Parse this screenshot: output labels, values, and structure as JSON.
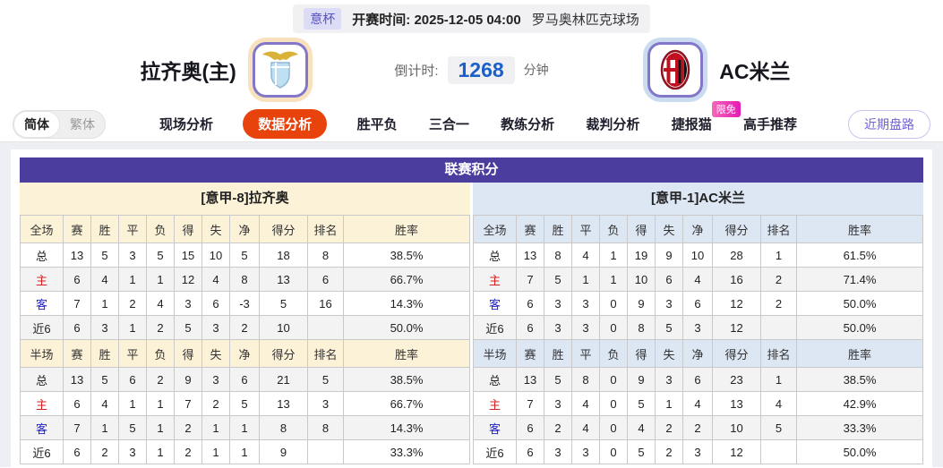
{
  "colors": {
    "title_bar_purple": "#4b3d9e",
    "active_tab_orange": "#e9430d",
    "home_header_cream": "#fcf2d8",
    "away_header_blue": "#dde6f3",
    "countdown_blue": "#1b5fc8",
    "badge_pink": "#e51ab5",
    "league_badge_purple": "#5553c6",
    "home_row_red": "#d42020",
    "away_row_blue": "#2222cc"
  },
  "match_header": {
    "league_badge": "意杯",
    "kickoff_label": "开赛时间:",
    "kickoff_time": "2025-12-05 04:00",
    "venue": "罗马奥林匹克球场",
    "home_team": "拉齐奥(主)",
    "away_team": "AC米兰",
    "countdown_label": "倒计时:",
    "countdown_value": "1268",
    "countdown_unit": "分钟"
  },
  "nav": {
    "lang_simplified": "简体",
    "lang_traditional": "繁体",
    "tabs": [
      {
        "label": "现场分析",
        "active": false
      },
      {
        "label": "数据分析",
        "active": true
      },
      {
        "label": "胜平负",
        "active": false
      },
      {
        "label": "三合一",
        "active": false
      },
      {
        "label": "教练分析",
        "active": false
      },
      {
        "label": "裁判分析",
        "active": false
      },
      {
        "label": "捷报猫",
        "active": false,
        "badge": "限免"
      },
      {
        "label": "高手推荐",
        "active": false
      }
    ],
    "recent_button": "近期盘路"
  },
  "standings": {
    "title": "联赛积分",
    "teams": [
      {
        "header": "[意甲-8]拉齐奥",
        "full": {
          "section_label": "全场",
          "columns": [
            "赛",
            "胜",
            "平",
            "负",
            "得",
            "失",
            "净",
            "得分",
            "排名",
            "胜率"
          ],
          "rows": [
            {
              "label": "总",
              "values": [
                "13",
                "5",
                "3",
                "5",
                "15",
                "10",
                "5",
                "18",
                "8",
                "38.5%"
              ]
            },
            {
              "label": "主",
              "values": [
                "6",
                "4",
                "1",
                "1",
                "12",
                "4",
                "8",
                "13",
                "6",
                "66.7%"
              ]
            },
            {
              "label": "客",
              "values": [
                "7",
                "1",
                "2",
                "4",
                "3",
                "6",
                "-3",
                "5",
                "16",
                "14.3%"
              ]
            },
            {
              "label": "近6",
              "values": [
                "6",
                "3",
                "1",
                "2",
                "5",
                "3",
                "2",
                "10",
                "",
                "50.0%"
              ]
            }
          ]
        },
        "half": {
          "section_label": "半场",
          "columns": [
            "赛",
            "胜",
            "平",
            "负",
            "得",
            "失",
            "净",
            "得分",
            "排名",
            "胜率"
          ],
          "rows": [
            {
              "label": "总",
              "values": [
                "13",
                "5",
                "6",
                "2",
                "9",
                "3",
                "6",
                "21",
                "5",
                "38.5%"
              ]
            },
            {
              "label": "主",
              "values": [
                "6",
                "4",
                "1",
                "1",
                "7",
                "2",
                "5",
                "13",
                "3",
                "66.7%"
              ]
            },
            {
              "label": "客",
              "values": [
                "7",
                "1",
                "5",
                "1",
                "2",
                "1",
                "1",
                "8",
                "8",
                "14.3%"
              ]
            },
            {
              "label": "近6",
              "values": [
                "6",
                "2",
                "3",
                "1",
                "2",
                "1",
                "1",
                "9",
                "",
                "33.3%"
              ]
            }
          ]
        }
      },
      {
        "header": "[意甲-1]AC米兰",
        "full": {
          "section_label": "全场",
          "columns": [
            "赛",
            "胜",
            "平",
            "负",
            "得",
            "失",
            "净",
            "得分",
            "排名",
            "胜率"
          ],
          "rows": [
            {
              "label": "总",
              "values": [
                "13",
                "8",
                "4",
                "1",
                "19",
                "9",
                "10",
                "28",
                "1",
                "61.5%"
              ]
            },
            {
              "label": "主",
              "values": [
                "7",
                "5",
                "1",
                "1",
                "10",
                "6",
                "4",
                "16",
                "2",
                "71.4%"
              ]
            },
            {
              "label": "客",
              "values": [
                "6",
                "3",
                "3",
                "0",
                "9",
                "3",
                "6",
                "12",
                "2",
                "50.0%"
              ]
            },
            {
              "label": "近6",
              "values": [
                "6",
                "3",
                "3",
                "0",
                "8",
                "5",
                "3",
                "12",
                "",
                "50.0%"
              ]
            }
          ]
        },
        "half": {
          "section_label": "半场",
          "columns": [
            "赛",
            "胜",
            "平",
            "负",
            "得",
            "失",
            "净",
            "得分",
            "排名",
            "胜率"
          ],
          "rows": [
            {
              "label": "总",
              "values": [
                "13",
                "5",
                "8",
                "0",
                "9",
                "3",
                "6",
                "23",
                "1",
                "38.5%"
              ]
            },
            {
              "label": "主",
              "values": [
                "7",
                "3",
                "4",
                "0",
                "5",
                "1",
                "4",
                "13",
                "4",
                "42.9%"
              ]
            },
            {
              "label": "客",
              "values": [
                "6",
                "2",
                "4",
                "0",
                "4",
                "2",
                "2",
                "10",
                "5",
                "33.3%"
              ]
            },
            {
              "label": "近6",
              "values": [
                "6",
                "3",
                "3",
                "0",
                "5",
                "2",
                "3",
                "12",
                "",
                "50.0%"
              ]
            }
          ]
        }
      }
    ]
  }
}
